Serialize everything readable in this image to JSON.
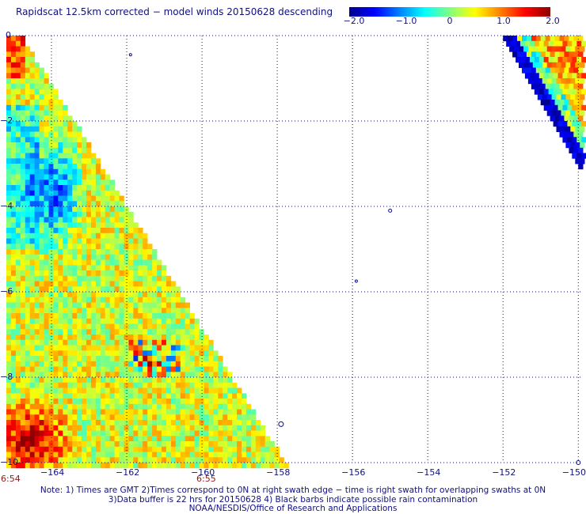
{
  "title": "Rapidscat 12.5km corrected − model winds 20150628 descending",
  "colorbar": {
    "ticks": [
      "−2.0",
      "−1.0",
      "0",
      "1.0",
      "2.0"
    ],
    "tick_values": [
      -2.0,
      -1.0,
      0,
      1.0,
      2.0
    ],
    "range": [
      -2.0,
      2.0
    ],
    "colors": [
      "#00008b",
      "#0000ff",
      "#0080ff",
      "#00ffff",
      "#80ff80",
      "#ffff00",
      "#ff8000",
      "#ff0000",
      "#8b0000"
    ]
  },
  "time_labels": {
    "left": "6:54",
    "mid": "6:55"
  },
  "footer": {
    "line1": "Note: 1) Times are GMT 2)Times correspond to 0N at right swath edge − time is right swath for overlapping swaths at 0N",
    "line2": "3)Data buffer is 22 hrs for 20150628 4) Black barbs indicate possible rain contamination",
    "line3": "NOAA/NESDIS/Office of Research and Applications"
  },
  "chart_data": {
    "type": "heatmap",
    "title": "Rapidscat 12.5km corrected − model winds 20150628 descending",
    "xlabel": "",
    "ylabel": "",
    "x_ticks": [
      -164,
      -162,
      -160,
      -158,
      -156,
      -154,
      -152,
      -150
    ],
    "x_tick_labels": [
      "−164",
      "−162",
      "−160",
      "−158",
      "−156",
      "−154",
      "−152",
      "−150"
    ],
    "y_ticks": [
      0,
      -2,
      -4,
      -6,
      -8,
      -10
    ],
    "y_tick_labels": [
      "0",
      "−2",
      "−4",
      "−6",
      "−8",
      "−10"
    ],
    "xlim": [
      -165.2,
      -149.9
    ],
    "ylim": [
      -10,
      0
    ],
    "grid": true,
    "value_range": [
      -2.0,
      2.0
    ],
    "units": "",
    "swaths": [
      {
        "region": "left swath, lower-left triangle",
        "lat_top": 0.0,
        "lat_bottom": -10.0,
        "lon_left": -165.2,
        "lon_right_at_top": -164.8,
        "lon_right_at_bottom": -157.8,
        "typical_values": "mostly -0.2 to 1.0; negative (-1.0 to -1.5) near -164.5 to -163.5 lon, -2 to -5 lat; strongly positive (1.5 to 2.0) near -165 to -163 lon, -8.5 to -10 lat"
      },
      {
        "region": "right swath, upper-right triangle",
        "lat_top": 0.0,
        "lat_bottom": -3.0,
        "lon_left_at_top": -152.0,
        "lon_left_at_bottom": -150.0,
        "lon_right": -149.9,
        "typical_values": "negative (-1.5 to -2.0) on left edge, 0.5 to 1.5 elsewhere"
      }
    ]
  }
}
